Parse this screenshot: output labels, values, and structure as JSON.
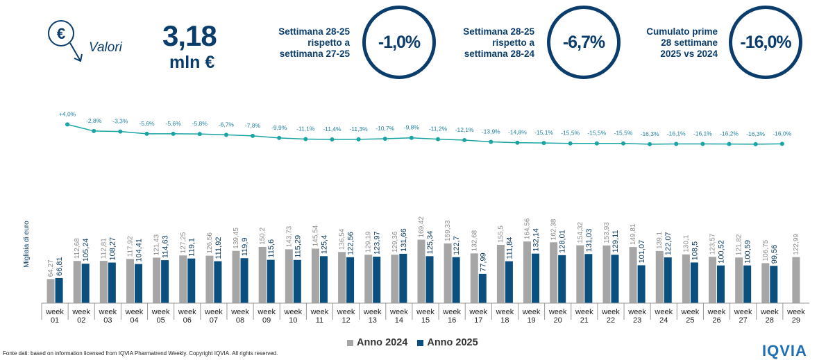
{
  "header": {
    "valori_label": "Valori",
    "total_value": "3,18",
    "total_unit": "mln €",
    "kpis": [
      {
        "label_lines": [
          "Settimana 28-25",
          "rispetto a",
          "settimana 27-25"
        ],
        "value": "-1,0%"
      },
      {
        "label_lines": [
          "Settimana 28-25",
          "rispetto a",
          "settimana 28-24"
        ],
        "value": "-6,7%"
      },
      {
        "label_lines": [
          "Cumulato prime",
          "28 settimane",
          "2025 vs 2024"
        ],
        "value": "-16,0%"
      }
    ]
  },
  "colors": {
    "series_2024": "#a6a6a6",
    "series_2025": "#0b4f7e",
    "line": "#1aa3a3",
    "text": "#0a3d6b"
  },
  "chart_data": {
    "type": "bar",
    "ylabel": "Migliaia di euro",
    "categories": [
      "week 01",
      "week 02",
      "week 03",
      "week 04",
      "week 05",
      "week 06",
      "week 07",
      "week 08",
      "week 09",
      "week 10",
      "week 11",
      "week 12",
      "week 13",
      "week 14",
      "week 15",
      "week 16",
      "week 17",
      "week 18",
      "week 19",
      "week 20",
      "week 21",
      "week 22",
      "week 23",
      "week 24",
      "week 25",
      "week 26",
      "week 27",
      "week 28",
      "week 29"
    ],
    "series": [
      {
        "name": "Anno 2024",
        "values": [
          64.27,
          112.68,
          112.81,
          117.92,
          121.43,
          127.25,
          126.56,
          139.45,
          150.2,
          143.73,
          145.54,
          136.54,
          129.19,
          129.36,
          169.42,
          159.33,
          132.68,
          155.5,
          164.56,
          162.38,
          154.32,
          153.93,
          149.81,
          139.1,
          130.1,
          123.57,
          121.82,
          106.75,
          122.99
        ],
        "labels": [
          "64,27",
          "112,68",
          "112,81",
          "117,92",
          "121,43",
          "127,25",
          "126,56",
          "139,45",
          "150,2",
          "143,73",
          "145,54",
          "136,54",
          "129,19",
          "129,36",
          "169,42",
          "159,33",
          "132,68",
          "155,5",
          "164,56",
          "162,38",
          "154,32",
          "153,93",
          "149,81",
          "139,1",
          "130,1",
          "123,57",
          "121,82",
          "106,75",
          "122,99"
        ]
      },
      {
        "name": "Anno 2025",
        "values": [
          66.81,
          105.24,
          108.27,
          104.41,
          114.63,
          119.1,
          111.92,
          119.9,
          115.6,
          115.29,
          125.4,
          122.56,
          123.97,
          131.66,
          125.34,
          122.7,
          77.99,
          111.84,
          132.14,
          128.01,
          131.03,
          129.11,
          101.07,
          122.07,
          108.5,
          100.52,
          100.59,
          99.56,
          null
        ],
        "labels": [
          "66,81",
          "105,24",
          "108,27",
          "104,41",
          "114,63",
          "119,1",
          "111,92",
          "119,9",
          "115,6",
          "115,29",
          "125,4",
          "122,56",
          "123,97",
          "131,66",
          "125,34",
          "122,7",
          "77,99",
          "111,84",
          "132,14",
          "128,01",
          "131,03",
          "129,11",
          "101,07",
          "122,07",
          "108,5",
          "100,52",
          "100,59",
          "99,56",
          ""
        ]
      }
    ],
    "cumulative_change": {
      "values": [
        4.0,
        -2.8,
        -3.3,
        -5.6,
        -5.6,
        -5.8,
        -6.7,
        -7.8,
        -9.9,
        -11.1,
        -11.4,
        -11.3,
        -10.7,
        -9.8,
        -11.2,
        -12.1,
        -13.9,
        -14.8,
        -15.1,
        -15.5,
        -15.5,
        -15.5,
        -16.3,
        -16.1,
        -16.1,
        -16.2,
        -16.3,
        -16.0
      ],
      "labels": [
        "+4,0%",
        "-2,8%",
        "-3,3%",
        "-5,6%",
        "-5,6%",
        "-5,8%",
        "-6,7%",
        "-7,8%",
        "-9,9%",
        "-11,1%",
        "-11,4%",
        "-11,3%",
        "-10,7%",
        "-9,8%",
        "-11,2%",
        "-12,1%",
        "-13,9%",
        "-14,8%",
        "-15,1%",
        "-15,5%",
        "-15,5%",
        "-15,5%",
        "-16,3%",
        "-16,1%",
        "-16,1%",
        "-16,2%",
        "-16,3%",
        "-16,0%"
      ]
    },
    "grid": false,
    "legend_position": "bottom"
  },
  "footer": {
    "source": "Fonte dati: based on information licensed from IQVIA Pharmatrend Weekly. Copyright IQVIA. All rights reserved.",
    "logo_text": "IQVIA"
  }
}
